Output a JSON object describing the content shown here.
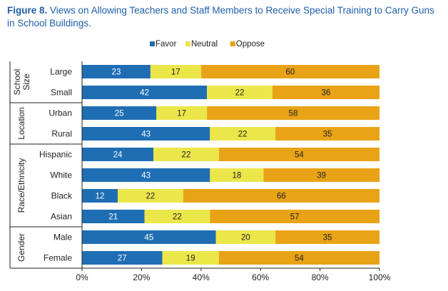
{
  "figure_label": "Figure 8.",
  "title_text": "Views on Allowing Teachers and Staff Members to Receive Special Training to Carry Guns in School Buildings.",
  "colors": {
    "favor": "#1f6eb4",
    "neutral": "#ebe74a",
    "oppose": "#e8a317",
    "title": "#1f5fa8",
    "axis": "#222222"
  },
  "chart_data": {
    "type": "bar",
    "orientation": "horizontal",
    "stacked": true,
    "title": "Figure 8. Views on Allowing Teachers and Staff Members to Receive Special Training to Carry Guns in School Buildings.",
    "legend_position": "top",
    "xlim": [
      0,
      100
    ],
    "x_ticks": [
      "0%",
      "20%",
      "40%",
      "60%",
      "80%",
      "100%"
    ],
    "groups": [
      {
        "name": "School Size",
        "categories": [
          "Large",
          "Small"
        ]
      },
      {
        "name": "Location",
        "categories": [
          "Urban",
          "Rural"
        ]
      },
      {
        "name": "Race/Ethnicity",
        "categories": [
          "Hispanic",
          "White",
          "Black",
          "Asian"
        ]
      },
      {
        "name": "Gender",
        "categories": [
          "Male",
          "Female"
        ]
      }
    ],
    "categories": [
      "Large",
      "Small",
      "Urban",
      "Rural",
      "Hispanic",
      "White",
      "Black",
      "Asian",
      "Male",
      "Female"
    ],
    "series": [
      {
        "name": "Favor",
        "values": [
          23,
          42,
          25,
          43,
          24,
          43,
          12,
          21,
          45,
          27
        ]
      },
      {
        "name": "Neutral",
        "values": [
          17,
          22,
          17,
          22,
          22,
          18,
          22,
          22,
          20,
          19
        ]
      },
      {
        "name": "Oppose",
        "values": [
          60,
          36,
          58,
          35,
          54,
          39,
          66,
          57,
          35,
          54
        ]
      }
    ]
  }
}
